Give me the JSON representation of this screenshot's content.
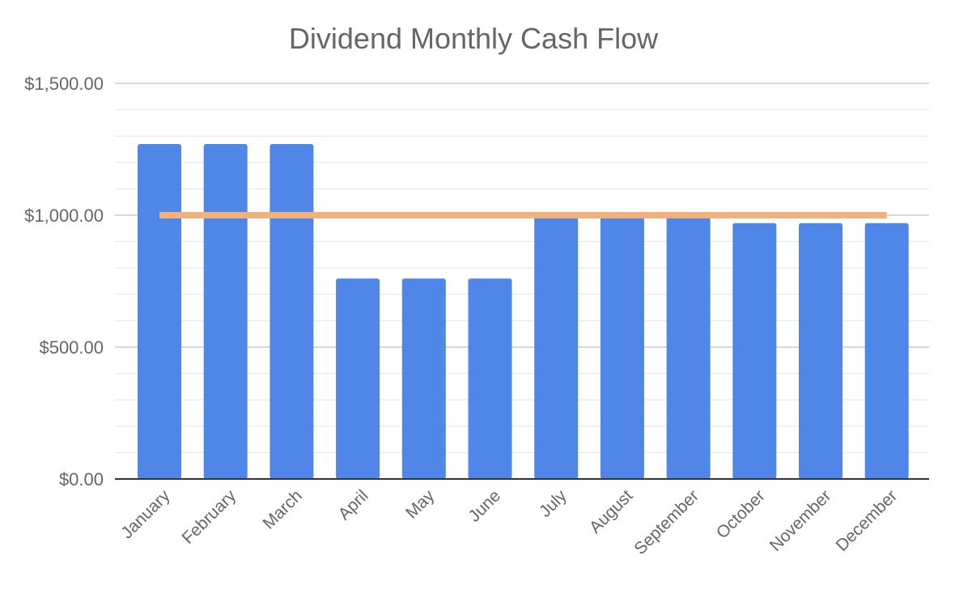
{
  "chart_data": {
    "type": "bar",
    "title": "Dividend Monthly Cash Flow",
    "xlabel": "",
    "ylabel": "",
    "categories": [
      "January",
      "February",
      "March",
      "April",
      "May",
      "June",
      "July",
      "August",
      "September",
      "October",
      "November",
      "December"
    ],
    "series": [
      {
        "type": "bar",
        "values": [
          1270,
          1270,
          1270,
          760,
          760,
          760,
          1000,
          1000,
          1000,
          970,
          970,
          970
        ]
      },
      {
        "type": "line",
        "values": [
          1000,
          1000,
          1000,
          1000,
          1000,
          1000,
          1000,
          1000,
          1000,
          1000,
          1000,
          1000
        ]
      }
    ],
    "ylim": [
      0,
      1500
    ],
    "yticks": [
      {
        "value": 0,
        "label": "$0.00"
      },
      {
        "value": 500,
        "label": "$500.00"
      },
      {
        "value": 1000,
        "label": "$1,000.00"
      },
      {
        "value": 1500,
        "label": "$1,500.00"
      }
    ],
    "grid": true,
    "legend": "none",
    "colors": {
      "bar": "#4f86e8",
      "line": "#f0b27a",
      "grid_major": "#cccccc",
      "grid_minor": "#e6e6e6",
      "axis": "#333333",
      "text": "#666666"
    }
  }
}
